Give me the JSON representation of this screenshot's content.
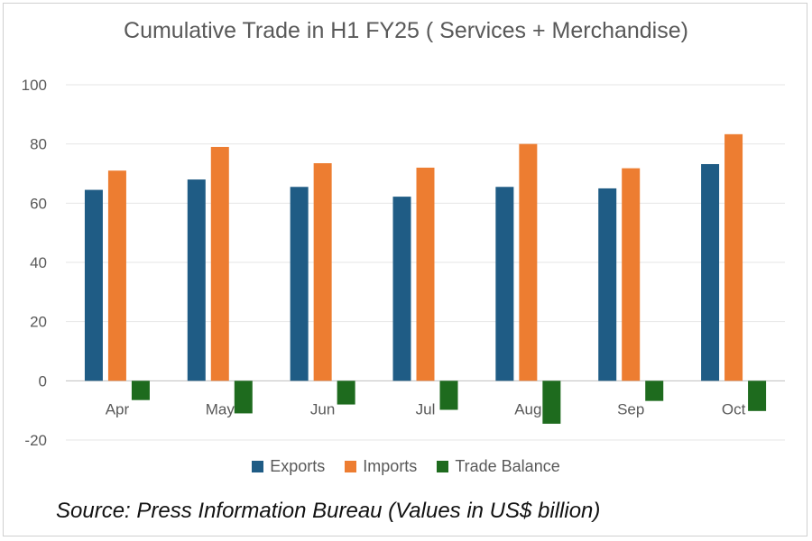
{
  "chart_data": {
    "type": "bar",
    "title": "Cumulative Trade in H1 FY25 ( Services + Merchandise)",
    "xlabel": "",
    "ylabel": "",
    "categories": [
      "Apr",
      "May",
      "Jun",
      "Jul",
      "Aug",
      "Sep",
      "Oct"
    ],
    "ylim": [
      -20,
      100
    ],
    "yticks": [
      "-20",
      "0",
      "20",
      "40",
      "60",
      "80",
      "100"
    ],
    "grid": true,
    "legend_position": "bottom",
    "series": [
      {
        "name": "Exports",
        "color": "#1f5c85",
        "values": [
          64.5,
          68.0,
          65.5,
          62.2,
          65.5,
          65.0,
          73.2
        ]
      },
      {
        "name": "Imports",
        "color": "#ed7d31",
        "values": [
          71.0,
          79.0,
          73.5,
          72.0,
          80.0,
          71.8,
          83.3
        ]
      },
      {
        "name": "Trade Balance",
        "color": "#1e6b1e",
        "values": [
          -6.5,
          -11.0,
          -8.0,
          -9.8,
          -14.5,
          -6.8,
          -10.2
        ]
      }
    ]
  },
  "source_note": "Source: Press Information Bureau (Values in US$ billion)"
}
